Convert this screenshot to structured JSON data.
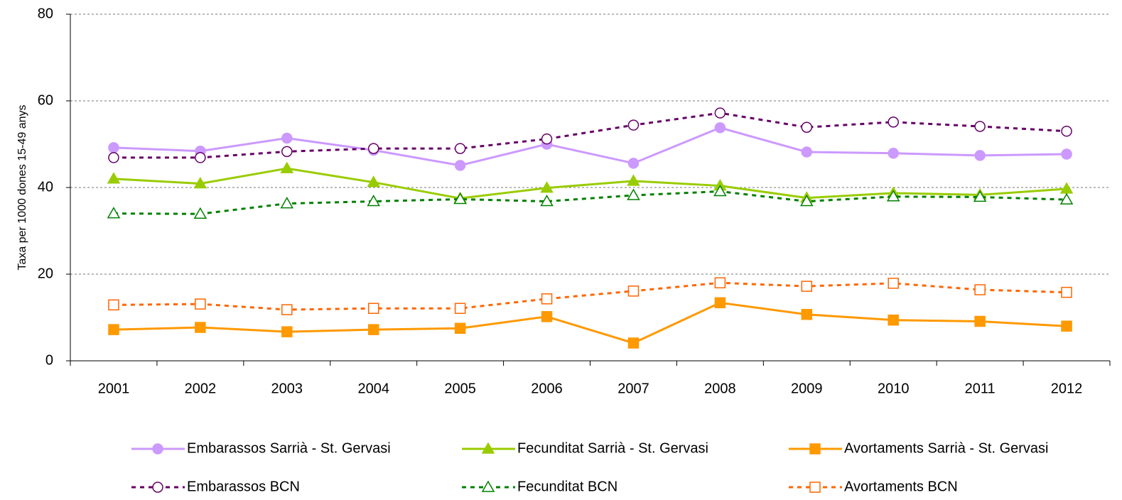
{
  "chart_data": {
    "type": "line",
    "y_label": "Taxa per 1000 dones 15-49 anys",
    "categories": [
      "2001",
      "2002",
      "2003",
      "2004",
      "2005",
      "2006",
      "2007",
      "2008",
      "2009",
      "2010",
      "2011",
      "2012"
    ],
    "ylim": [
      0,
      80
    ],
    "yticks": [
      0,
      20,
      40,
      60,
      80
    ],
    "grid": true,
    "legend": "bottom",
    "series": [
      {
        "name": "Embarassos Sarrià - St. Gervasi",
        "color": "#cc99ff",
        "marker": "circle",
        "filled": true,
        "dashed": false,
        "values": [
          49.2,
          48.4,
          51.4,
          48.6,
          45.1,
          50.0,
          45.6,
          53.8,
          48.2,
          47.9,
          47.4,
          47.7
        ]
      },
      {
        "name": "Fecunditat Sarrià - St. Gervasi",
        "color": "#99cc00",
        "marker": "triangle",
        "filled": true,
        "dashed": false,
        "values": [
          42.0,
          40.9,
          44.4,
          41.2,
          37.5,
          39.9,
          41.5,
          40.4,
          37.6,
          38.7,
          38.3,
          39.7
        ]
      },
      {
        "name": "Avortaments Sarrià - St. Gervasi",
        "color": "#ff9900",
        "marker": "square",
        "filled": true,
        "dashed": false,
        "values": [
          7.2,
          7.7,
          6.7,
          7.2,
          7.5,
          10.2,
          4.1,
          13.4,
          10.7,
          9.4,
          9.1,
          8.0
        ]
      },
      {
        "name": "Embarassos BCN",
        "color": "#660066",
        "marker": "circle",
        "filled": false,
        "dashed": true,
        "values": [
          46.9,
          46.9,
          48.3,
          49.0,
          49.0,
          51.2,
          54.4,
          57.2,
          53.9,
          55.1,
          54.1,
          53.0
        ]
      },
      {
        "name": "Fecunditat BCN",
        "color": "#008000",
        "marker": "triangle",
        "filled": false,
        "dashed": true,
        "values": [
          34.0,
          33.9,
          36.3,
          36.8,
          37.3,
          36.8,
          38.2,
          39.1,
          36.8,
          37.9,
          37.8,
          37.2
        ]
      },
      {
        "name": "Avortaments BCN",
        "color": "#ff6600",
        "marker": "square",
        "filled": false,
        "dashed": true,
        "values": [
          12.9,
          13.1,
          11.8,
          12.1,
          12.1,
          14.3,
          16.1,
          18.0,
          17.2,
          17.9,
          16.4,
          15.8
        ]
      }
    ]
  }
}
